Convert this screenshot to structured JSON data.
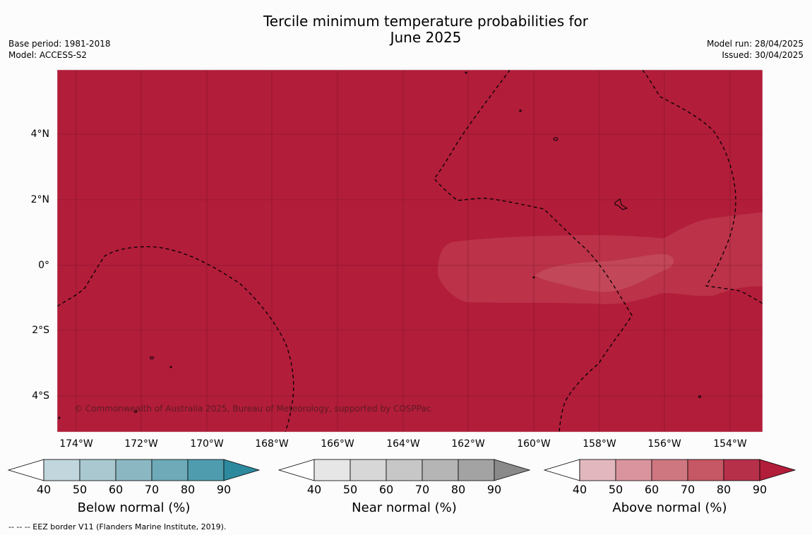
{
  "header": {
    "title_line1": "Tercile minimum temperature probabilities for",
    "title_line2": "June 2025",
    "base_period": "Base period: 1981-2018",
    "model": "Model: ACCESS-S2",
    "model_run": "Model run: 28/04/2025",
    "issued": "Issued: 30/04/2025"
  },
  "map": {
    "lat_labels": [
      "4°N",
      "2°N",
      "0°",
      "2°S",
      "4°S"
    ],
    "lon_labels": [
      "174°W",
      "172°W",
      "170°W",
      "168°W",
      "166°W",
      "164°W",
      "162°W",
      "160°W",
      "158°W",
      "156°W",
      "154°W"
    ],
    "background_category": "Above normal",
    "background_band": "80-90",
    "embedded_band": "70-80",
    "copyright": "© Commonwealth of Australia 2025, Bureau of Meteorology, supported by COSPPac"
  },
  "colorbars": [
    {
      "label": "Below normal (%)",
      "ticks": [
        "40",
        "50",
        "60",
        "70",
        "80",
        "90"
      ],
      "colors": [
        "#c1d6dd",
        "#a9c8cf",
        "#8ab7c2",
        "#6eaab8",
        "#4f9cae",
        "#2d8a9e"
      ]
    },
    {
      "label": "Near normal (%)",
      "ticks": [
        "40",
        "50",
        "60",
        "70",
        "80",
        "90"
      ],
      "colors": [
        "#e6e6e6",
        "#d7d7d7",
        "#c7c7c7",
        "#b5b5b5",
        "#a3a3a3",
        "#8a8a8a"
      ]
    },
    {
      "label": "Above normal (%)",
      "ticks": [
        "40",
        "50",
        "60",
        "70",
        "80",
        "90"
      ],
      "colors": [
        "#e2b7be",
        "#d9949d",
        "#cf7780",
        "#c55864",
        "#b7304a",
        "#b21d3a"
      ]
    }
  ],
  "colors": {
    "above_80_90": "#b21d3a",
    "above_70_80": "#bb3249",
    "above_60_70": "#c24758"
  },
  "footer": "--  --  -- EEZ border V11 (Flanders Marine Institute, 2019)."
}
